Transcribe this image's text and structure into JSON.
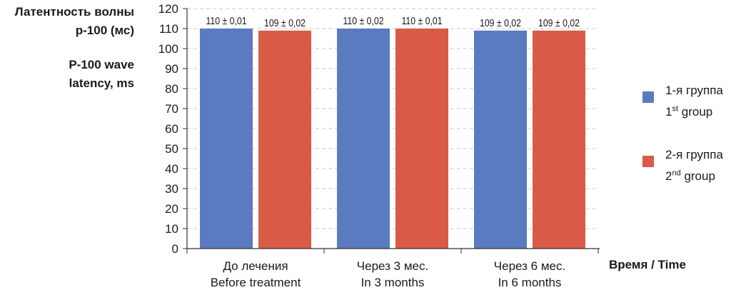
{
  "chart_data": {
    "type": "bar",
    "ylabel_ru": "Латентность волны р-100 (мс)",
    "ylabel_ru_lines": [
      "Латентность волны",
      "р-100 (мс)"
    ],
    "ylabel_en": "P-100 wave latency, ms",
    "ylabel_en_lines": [
      "P-100 wave",
      "latency, ms"
    ],
    "xlabel": "Время / Time",
    "ylim": [
      0,
      120
    ],
    "ytick_step": 10,
    "grid": true,
    "legend_position": "right",
    "categories": [
      {
        "ru": "До лечения",
        "en": "Before treatment"
      },
      {
        "ru": "Через 3 мес.",
        "en": "In 3 months"
      },
      {
        "ru": "Через 6 мес.",
        "en": "In 6 months"
      }
    ],
    "series": [
      {
        "name_ru": "1-я группа",
        "name_en_base": "1",
        "name_en_sup": "st",
        "name_en_rest": " group",
        "color": "#5b7bc0",
        "values": [
          110,
          110,
          109
        ],
        "labels": [
          "110 ± 0,01",
          "110 ± 0,02",
          "109 ± 0,02"
        ]
      },
      {
        "name_ru": "2-я группа",
        "name_en_base": "2",
        "name_en_sup": "nd",
        "name_en_rest": " group",
        "color": "#d95b47",
        "values": [
          109,
          110,
          109
        ],
        "labels": [
          "109 ± 0,02",
          "110 ± 0,01",
          "109 ± 0,02"
        ]
      }
    ]
  }
}
